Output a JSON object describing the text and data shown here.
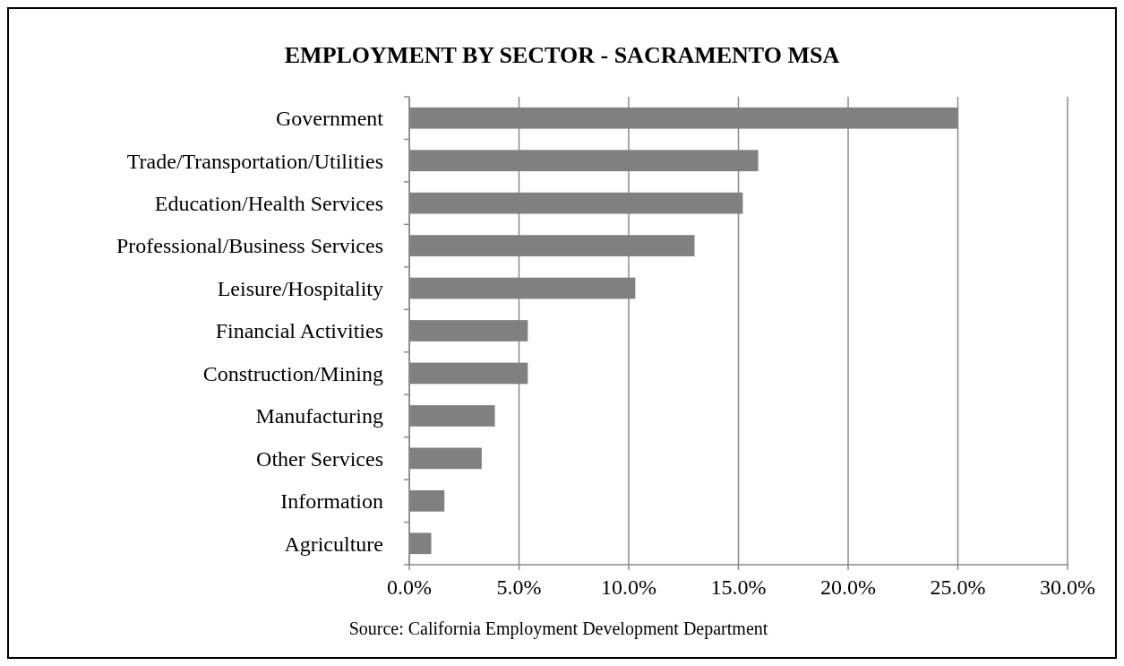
{
  "chart_data": {
    "type": "bar",
    "orientation": "horizontal",
    "title": "EMPLOYMENT BY SECTOR - SACRAMENTO MSA",
    "categories": [
      "Government",
      "Trade/Transportation/Utilities",
      "Education/Health Services",
      "Professional/Business Services",
      "Leisure/Hospitality",
      "Financial Activities",
      "Construction/Mining",
      "Manufacturing",
      "Other Services",
      "Information",
      "Agriculture"
    ],
    "values": [
      25.0,
      15.9,
      15.2,
      13.0,
      10.3,
      5.4,
      5.4,
      3.9,
      3.3,
      1.6,
      1.0
    ],
    "color": "#808080",
    "xlim": [
      0,
      30
    ],
    "xticks": [
      {
        "value": 0,
        "label": "0.0%"
      },
      {
        "value": 5,
        "label": "5.0%"
      },
      {
        "value": 10,
        "label": "10.0%"
      },
      {
        "value": 15,
        "label": "15.0%"
      },
      {
        "value": 20,
        "label": "20.0%"
      },
      {
        "value": 25,
        "label": "25.0%"
      },
      {
        "value": 30,
        "label": "30.0%"
      }
    ],
    "grid": "x",
    "annotations": [
      "Source: California Employment Development Department"
    ]
  }
}
